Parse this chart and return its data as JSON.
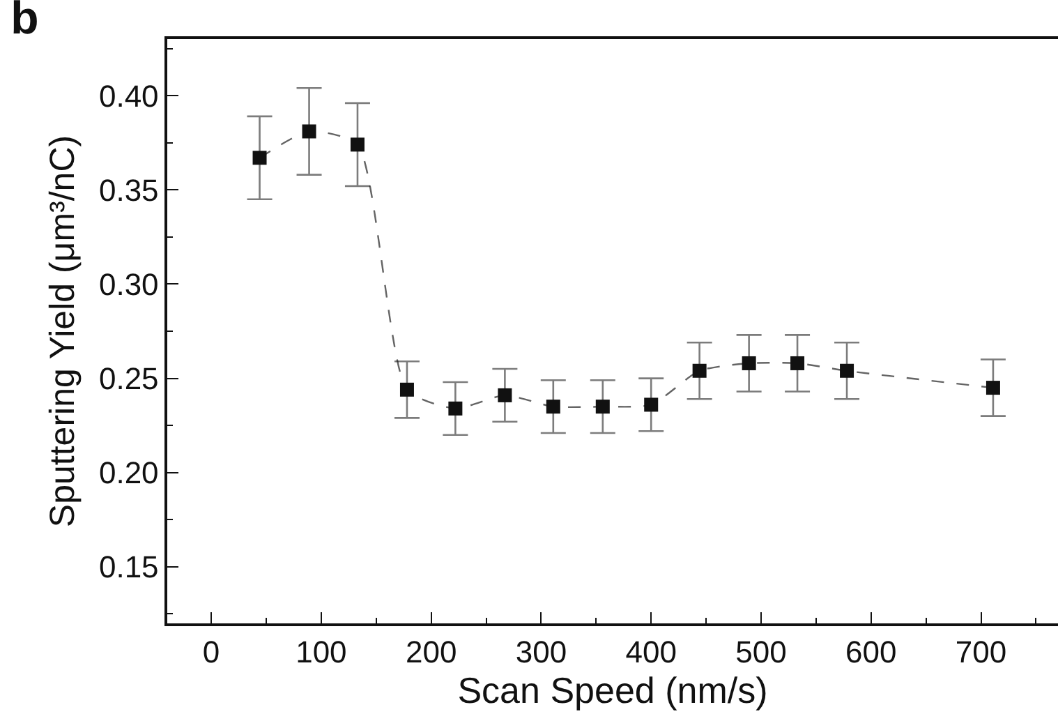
{
  "chart_data": {
    "type": "line",
    "title": "b",
    "xlabel": "Scan Speed (nm/s)",
    "ylabel": "Sputtering Yield (μm³/nC)",
    "x": [
      44,
      89,
      133,
      178,
      222,
      267,
      311,
      356,
      400,
      444,
      489,
      533,
      578,
      711
    ],
    "values": [
      0.367,
      0.381,
      0.374,
      0.244,
      0.234,
      0.241,
      0.235,
      0.235,
      0.236,
      0.254,
      0.258,
      0.258,
      0.254,
      0.245
    ],
    "errors": [
      0.022,
      0.023,
      0.022,
      0.015,
      0.014,
      0.014,
      0.014,
      0.014,
      0.014,
      0.015,
      0.015,
      0.015,
      0.015,
      0.015
    ],
    "color": "#111111",
    "marker": "square",
    "line_style": "dashed",
    "xlim": [
      -40,
      770
    ],
    "xticks": [
      0,
      {
        "value": 50,
        "label": null
      },
      100,
      {
        "value": 150,
        "label": null
      },
      200,
      {
        "value": 250,
        "label": null
      },
      300,
      {
        "value": 350,
        "label": null
      },
      400,
      {
        "value": 450,
        "label": null
      },
      500,
      {
        "value": 550,
        "label": null
      },
      600,
      {
        "value": 650,
        "label": null
      },
      700,
      {
        "value": 750,
        "label": null
      }
    ],
    "ylim": [
      0.12,
      0.43
    ],
    "yticks": [
      {
        "value": 0.125,
        "label": null
      },
      {
        "value": 0.15,
        "label": "0.15"
      },
      {
        "value": 0.175,
        "label": null
      },
      {
        "value": 0.2,
        "label": "0.20"
      },
      {
        "value": 0.225,
        "label": null
      },
      {
        "value": 0.25,
        "label": "0.25"
      },
      {
        "value": 0.275,
        "label": null
      },
      {
        "value": 0.3,
        "label": "0.30"
      },
      {
        "value": 0.325,
        "label": null
      },
      {
        "value": 0.35,
        "label": "0.35"
      },
      {
        "value": 0.375,
        "label": null
      },
      {
        "value": 0.4,
        "label": "0.40"
      },
      {
        "value": 0.425,
        "label": null
      }
    ]
  }
}
